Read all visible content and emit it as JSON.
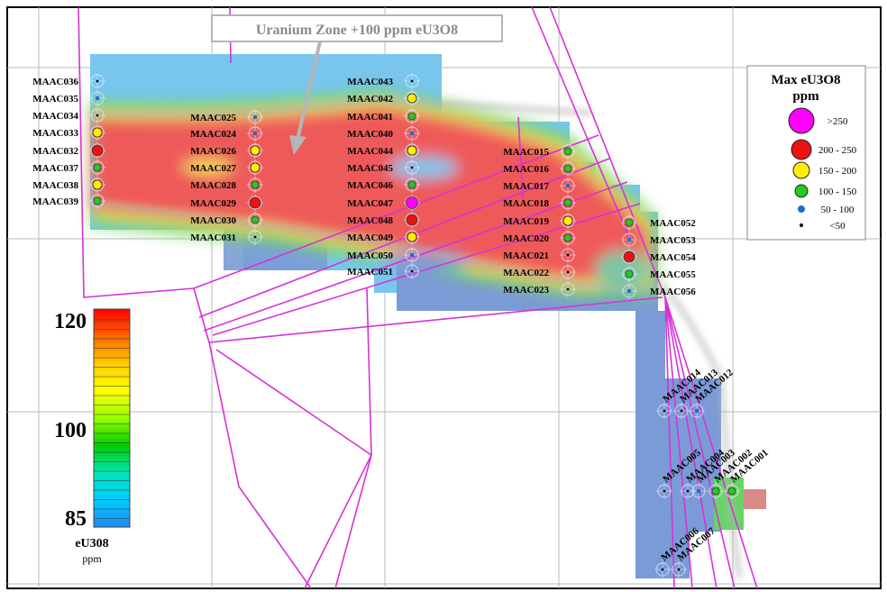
{
  "callout": {
    "text": "Uranium Zone +100 ppm eU3O8"
  },
  "legend": {
    "title": "Max eU3O8",
    "unit": "ppm",
    "entries": [
      {
        "label": ">250",
        "color": "#ff00ff"
      },
      {
        "label": "200 - 250",
        "color": "#ee1111"
      },
      {
        "label": "150 - 200",
        "color": "#ffee00"
      },
      {
        "label": "100 - 150",
        "color": "#22cc22"
      },
      {
        "label": "50 - 100",
        "color": "#1a6fd6"
      },
      {
        "label": "<50",
        "color": "#000000"
      }
    ]
  },
  "color_scale": {
    "title": "eU308",
    "unit": "ppm",
    "labels": [
      "120",
      "100",
      "85"
    ],
    "colors": [
      "#ff0000",
      "#ff6600",
      "#ffcc00",
      "#ffff00",
      "#99ff00",
      "#00cc00",
      "#00e6b8",
      "#00ccff",
      "#2288ee"
    ]
  },
  "colors": {
    "boundary": "#d633d6",
    "grid": "#b8b8b8",
    "callout": "#b5b5b5",
    "high": "#ee5a5a",
    "low_blue": "#78c6ee",
    "low_slate": "#7b9bd6",
    "green": "#66d466",
    "yellow": "#f2e060"
  },
  "holes": [
    {
      "id": "MAAC036",
      "cls": "<50"
    },
    {
      "id": "MAAC035",
      "cls": "50 - 100"
    },
    {
      "id": "MAAC034",
      "cls": "<50"
    },
    {
      "id": "MAAC033",
      "cls": "150 - 200"
    },
    {
      "id": "MAAC032",
      "cls": "200 - 250"
    },
    {
      "id": "MAAC037",
      "cls": "100 - 150"
    },
    {
      "id": "MAAC038",
      "cls": "150 - 200"
    },
    {
      "id": "MAAC039",
      "cls": "100 - 150"
    },
    {
      "id": "MAAC025",
      "cls": "50 - 100"
    },
    {
      "id": "MAAC024",
      "cls": "50 - 100"
    },
    {
      "id": "MAAC026",
      "cls": "150 - 200"
    },
    {
      "id": "MAAC027",
      "cls": "150 - 200"
    },
    {
      "id": "MAAC028",
      "cls": "100 - 150"
    },
    {
      "id": "MAAC029",
      "cls": "200 - 250"
    },
    {
      "id": "MAAC030",
      "cls": "100 - 150"
    },
    {
      "id": "MAAC031",
      "cls": "<50"
    },
    {
      "id": "MAAC043",
      "cls": "<50"
    },
    {
      "id": "MAAC042",
      "cls": "150 - 200"
    },
    {
      "id": "MAAC041",
      "cls": "100 - 150"
    },
    {
      "id": "MAAC040",
      "cls": "50 - 100"
    },
    {
      "id": "MAAC044",
      "cls": "150 - 200"
    },
    {
      "id": "MAAC045",
      "cls": "<50"
    },
    {
      "id": "MAAC046",
      "cls": "100 - 150"
    },
    {
      "id": "MAAC047",
      "cls": ">250"
    },
    {
      "id": "MAAC048",
      "cls": "200 - 250"
    },
    {
      "id": "MAAC049",
      "cls": "150 - 200"
    },
    {
      "id": "MAAC050",
      "cls": "50 - 100"
    },
    {
      "id": "MAAC051",
      "cls": "<50"
    },
    {
      "id": "MAAC015",
      "cls": "100 - 150"
    },
    {
      "id": "MAAC016",
      "cls": "100 - 150"
    },
    {
      "id": "MAAC017",
      "cls": "50 - 100"
    },
    {
      "id": "MAAC018",
      "cls": "100 - 150"
    },
    {
      "id": "MAAC019",
      "cls": "150 - 200"
    },
    {
      "id": "MAAC020",
      "cls": "100 - 150"
    },
    {
      "id": "MAAC021",
      "cls": "<50"
    },
    {
      "id": "MAAC022",
      "cls": "<50"
    },
    {
      "id": "MAAC023",
      "cls": "<50"
    },
    {
      "id": "MAAC052",
      "cls": "100 - 150"
    },
    {
      "id": "MAAC053",
      "cls": "50 - 100"
    },
    {
      "id": "MAAC054",
      "cls": "200 - 250"
    },
    {
      "id": "MAAC055",
      "cls": "100 - 150"
    },
    {
      "id": "MAAC056",
      "cls": "50 - 100"
    },
    {
      "id": "MAAC014",
      "cls": "<50"
    },
    {
      "id": "MAAC013",
      "cls": "<50"
    },
    {
      "id": "MAAC012",
      "cls": "50 - 100"
    },
    {
      "id": "MAAC005",
      "cls": "<50"
    },
    {
      "id": "MAAC004",
      "cls": "<50"
    },
    {
      "id": "MAAC003",
      "cls": "50 - 100"
    },
    {
      "id": "MAAC002",
      "cls": "100 - 150"
    },
    {
      "id": "MAAC001",
      "cls": "100 - 150"
    },
    {
      "id": "MAAC006",
      "cls": "<50"
    },
    {
      "id": "MAAC007",
      "cls": "<50"
    }
  ]
}
